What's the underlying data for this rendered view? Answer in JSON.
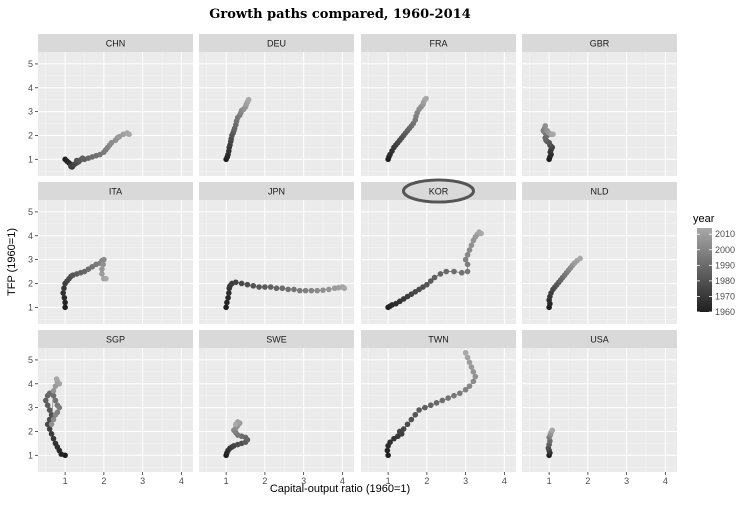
{
  "chart_data": {
    "type": "scatter",
    "title": "Growth paths compared, 1960-2014",
    "xlabel": "Capital-output ratio (1960=1)",
    "ylabel": "TFP (1960=1)",
    "xlim": [
      0.3,
      4.3
    ],
    "ylim": [
      0.3,
      5.5
    ],
    "x_ticks": [
      1,
      2,
      3,
      4
    ],
    "y_ticks": [
      1,
      2,
      3,
      4,
      5
    ],
    "grid": true,
    "color_scale": {
      "title": "year",
      "range": [
        1960,
        2014
      ],
      "ticks": [
        1960,
        1970,
        1980,
        1990,
        2000,
        2010
      ],
      "low_color": "#1f1f1f",
      "high_color": "#a8a8a8"
    },
    "panel_background": "#ebebeb",
    "strip_background": "#d9d9d9",
    "highlight_color": "#555555",
    "highlighted_panel": "KOR",
    "legend_position": "right",
    "panels": [
      {
        "name": "CHN",
        "points": [
          [
            1.0,
            1.0
          ],
          [
            1.05,
            0.92
          ],
          [
            1.1,
            0.85
          ],
          [
            1.15,
            0.78
          ],
          [
            1.2,
            0.72
          ],
          [
            1.18,
            0.68
          ],
          [
            1.15,
            0.7
          ],
          [
            1.2,
            0.75
          ],
          [
            1.25,
            0.8
          ],
          [
            1.3,
            0.85
          ],
          [
            1.35,
            0.9
          ],
          [
            1.3,
            0.95
          ],
          [
            1.4,
            0.98
          ],
          [
            1.5,
            1.0
          ],
          [
            1.45,
            1.05
          ],
          [
            1.6,
            1.05
          ],
          [
            1.7,
            1.1
          ],
          [
            1.8,
            1.15
          ],
          [
            1.9,
            1.2
          ],
          [
            2.0,
            1.3
          ],
          [
            2.05,
            1.4
          ],
          [
            2.1,
            1.5
          ],
          [
            2.15,
            1.6
          ],
          [
            2.2,
            1.7
          ],
          [
            2.3,
            1.8
          ],
          [
            2.35,
            1.9
          ],
          [
            2.4,
            1.95
          ],
          [
            2.5,
            2.05
          ],
          [
            2.6,
            2.1
          ],
          [
            2.65,
            2.05
          ]
        ]
      },
      {
        "name": "DEU",
        "points": [
          [
            1.0,
            1.0
          ],
          [
            1.03,
            1.1
          ],
          [
            1.05,
            1.2
          ],
          [
            1.07,
            1.35
          ],
          [
            1.08,
            1.5
          ],
          [
            1.1,
            1.6
          ],
          [
            1.12,
            1.75
          ],
          [
            1.13,
            1.85
          ],
          [
            1.15,
            2.0
          ],
          [
            1.18,
            2.1
          ],
          [
            1.2,
            2.2
          ],
          [
            1.22,
            2.3
          ],
          [
            1.25,
            2.45
          ],
          [
            1.27,
            2.6
          ],
          [
            1.3,
            2.75
          ],
          [
            1.35,
            2.85
          ],
          [
            1.38,
            2.95
          ],
          [
            1.4,
            3.05
          ],
          [
            1.45,
            3.1
          ],
          [
            1.5,
            3.2
          ],
          [
            1.52,
            3.3
          ],
          [
            1.55,
            3.4
          ],
          [
            1.58,
            3.5
          ]
        ]
      },
      {
        "name": "FRA",
        "points": [
          [
            1.0,
            1.0
          ],
          [
            1.02,
            1.1
          ],
          [
            1.05,
            1.2
          ],
          [
            1.1,
            1.35
          ],
          [
            1.15,
            1.5
          ],
          [
            1.2,
            1.6
          ],
          [
            1.25,
            1.7
          ],
          [
            1.3,
            1.8
          ],
          [
            1.35,
            1.9
          ],
          [
            1.4,
            2.0
          ],
          [
            1.45,
            2.1
          ],
          [
            1.5,
            2.2
          ],
          [
            1.55,
            2.3
          ],
          [
            1.6,
            2.4
          ],
          [
            1.65,
            2.5
          ],
          [
            1.7,
            2.65
          ],
          [
            1.72,
            2.8
          ],
          [
            1.75,
            2.95
          ],
          [
            1.8,
            3.1
          ],
          [
            1.85,
            3.2
          ],
          [
            1.9,
            3.3
          ],
          [
            1.92,
            3.4
          ],
          [
            1.95,
            3.5
          ],
          [
            1.98,
            3.55
          ]
        ]
      },
      {
        "name": "GBR",
        "points": [
          [
            1.0,
            1.0
          ],
          [
            1.02,
            1.1
          ],
          [
            1.05,
            1.2
          ],
          [
            1.03,
            1.3
          ],
          [
            1.05,
            1.4
          ],
          [
            1.08,
            1.5
          ],
          [
            1.05,
            1.55
          ],
          [
            1.02,
            1.6
          ],
          [
            1.0,
            1.7
          ],
          [
            0.95,
            1.75
          ],
          [
            0.92,
            1.8
          ],
          [
            0.9,
            1.9
          ],
          [
            0.95,
            2.0
          ],
          [
            0.9,
            2.1
          ],
          [
            0.88,
            2.15
          ],
          [
            0.85,
            2.2
          ],
          [
            0.88,
            2.3
          ],
          [
            0.9,
            2.4
          ],
          [
            0.95,
            2.2
          ],
          [
            1.0,
            2.1
          ],
          [
            1.05,
            2.05
          ],
          [
            1.1,
            2.05
          ]
        ]
      },
      {
        "name": "ITA",
        "points": [
          [
            1.0,
            1.0
          ],
          [
            1.0,
            1.2
          ],
          [
            0.98,
            1.4
          ],
          [
            0.95,
            1.6
          ],
          [
            0.97,
            1.8
          ],
          [
            1.0,
            2.0
          ],
          [
            1.05,
            2.1
          ],
          [
            1.1,
            2.2
          ],
          [
            1.15,
            2.3
          ],
          [
            1.2,
            2.35
          ],
          [
            1.3,
            2.4
          ],
          [
            1.4,
            2.45
          ],
          [
            1.5,
            2.5
          ],
          [
            1.6,
            2.6
          ],
          [
            1.7,
            2.7
          ],
          [
            1.8,
            2.8
          ],
          [
            1.9,
            2.85
          ],
          [
            1.95,
            2.95
          ],
          [
            2.0,
            3.0
          ],
          [
            1.98,
            2.8
          ],
          [
            1.95,
            2.6
          ],
          [
            1.95,
            2.4
          ],
          [
            2.0,
            2.2
          ],
          [
            2.05,
            2.2
          ]
        ]
      },
      {
        "name": "JPN",
        "points": [
          [
            1.0,
            1.0
          ],
          [
            1.02,
            1.2
          ],
          [
            1.05,
            1.4
          ],
          [
            1.07,
            1.6
          ],
          [
            1.08,
            1.8
          ],
          [
            1.1,
            1.9
          ],
          [
            1.15,
            2.0
          ],
          [
            1.25,
            2.05
          ],
          [
            1.4,
            2.0
          ],
          [
            1.55,
            1.95
          ],
          [
            1.7,
            1.9
          ],
          [
            1.85,
            1.85
          ],
          [
            2.0,
            1.85
          ],
          [
            2.15,
            1.85
          ],
          [
            2.3,
            1.8
          ],
          [
            2.45,
            1.8
          ],
          [
            2.6,
            1.75
          ],
          [
            2.75,
            1.75
          ],
          [
            2.9,
            1.7
          ],
          [
            3.05,
            1.7
          ],
          [
            3.2,
            1.7
          ],
          [
            3.35,
            1.7
          ],
          [
            3.5,
            1.72
          ],
          [
            3.65,
            1.75
          ],
          [
            3.8,
            1.8
          ],
          [
            3.9,
            1.82
          ],
          [
            4.0,
            1.85
          ],
          [
            4.05,
            1.8
          ]
        ]
      },
      {
        "name": "KOR",
        "points": [
          [
            1.0,
            1.0
          ],
          [
            1.05,
            1.05
          ],
          [
            1.1,
            1.1
          ],
          [
            1.2,
            1.15
          ],
          [
            1.3,
            1.25
          ],
          [
            1.4,
            1.35
          ],
          [
            1.5,
            1.45
          ],
          [
            1.6,
            1.55
          ],
          [
            1.7,
            1.65
          ],
          [
            1.8,
            1.75
          ],
          [
            1.9,
            1.85
          ],
          [
            2.0,
            1.95
          ],
          [
            2.1,
            2.1
          ],
          [
            2.2,
            2.25
          ],
          [
            2.35,
            2.4
          ],
          [
            2.5,
            2.5
          ],
          [
            2.7,
            2.5
          ],
          [
            2.9,
            2.45
          ],
          [
            3.05,
            2.5
          ],
          [
            3.05,
            2.8
          ],
          [
            3.0,
            3.0
          ],
          [
            3.05,
            3.2
          ],
          [
            3.1,
            3.4
          ],
          [
            3.15,
            3.6
          ],
          [
            3.2,
            3.8
          ],
          [
            3.25,
            3.95
          ],
          [
            3.3,
            4.05
          ],
          [
            3.35,
            4.15
          ],
          [
            3.4,
            4.1
          ]
        ]
      },
      {
        "name": "NLD",
        "points": [
          [
            1.0,
            1.0
          ],
          [
            1.02,
            1.15
          ],
          [
            1.0,
            1.3
          ],
          [
            1.02,
            1.45
          ],
          [
            1.05,
            1.6
          ],
          [
            1.1,
            1.75
          ],
          [
            1.15,
            1.85
          ],
          [
            1.2,
            1.95
          ],
          [
            1.25,
            2.05
          ],
          [
            1.3,
            2.15
          ],
          [
            1.35,
            2.25
          ],
          [
            1.4,
            2.35
          ],
          [
            1.45,
            2.45
          ],
          [
            1.5,
            2.55
          ],
          [
            1.55,
            2.65
          ],
          [
            1.6,
            2.75
          ],
          [
            1.65,
            2.85
          ],
          [
            1.72,
            2.95
          ],
          [
            1.8,
            3.05
          ]
        ]
      },
      {
        "name": "SGP",
        "points": [
          [
            1.0,
            1.0
          ],
          [
            0.9,
            1.05
          ],
          [
            0.85,
            1.2
          ],
          [
            0.8,
            1.35
          ],
          [
            0.75,
            1.5
          ],
          [
            0.7,
            1.7
          ],
          [
            0.65,
            1.9
          ],
          [
            0.6,
            2.1
          ],
          [
            0.55,
            2.3
          ],
          [
            0.6,
            2.5
          ],
          [
            0.65,
            2.7
          ],
          [
            0.6,
            2.9
          ],
          [
            0.55,
            3.1
          ],
          [
            0.5,
            3.3
          ],
          [
            0.55,
            3.5
          ],
          [
            0.6,
            3.6
          ],
          [
            0.7,
            3.5
          ],
          [
            0.75,
            3.3
          ],
          [
            0.8,
            3.1
          ],
          [
            0.85,
            3.0
          ],
          [
            0.8,
            2.8
          ],
          [
            0.75,
            2.7
          ],
          [
            0.7,
            2.5
          ],
          [
            0.65,
            2.3
          ],
          [
            0.7,
            3.7
          ],
          [
            0.75,
            3.9
          ],
          [
            0.8,
            4.1
          ],
          [
            0.85,
            4.0
          ],
          [
            0.78,
            4.2
          ]
        ]
      },
      {
        "name": "SWE",
        "points": [
          [
            1.0,
            1.0
          ],
          [
            1.02,
            1.1
          ],
          [
            1.05,
            1.2
          ],
          [
            1.1,
            1.3
          ],
          [
            1.15,
            1.35
          ],
          [
            1.2,
            1.4
          ],
          [
            1.3,
            1.45
          ],
          [
            1.4,
            1.5
          ],
          [
            1.5,
            1.55
          ],
          [
            1.55,
            1.65
          ],
          [
            1.5,
            1.75
          ],
          [
            1.4,
            1.8
          ],
          [
            1.3,
            1.85
          ],
          [
            1.25,
            1.95
          ],
          [
            1.2,
            2.05
          ],
          [
            1.25,
            2.15
          ],
          [
            1.3,
            2.25
          ],
          [
            1.35,
            2.35
          ],
          [
            1.3,
            2.4
          ],
          [
            1.25,
            2.3
          ]
        ]
      },
      {
        "name": "TWN",
        "points": [
          [
            1.0,
            1.0
          ],
          [
            0.98,
            1.2
          ],
          [
            1.0,
            1.4
          ],
          [
            1.05,
            1.55
          ],
          [
            1.15,
            1.7
          ],
          [
            1.25,
            1.8
          ],
          [
            1.35,
            1.9
          ],
          [
            1.3,
            2.0
          ],
          [
            1.4,
            2.1
          ],
          [
            1.5,
            2.3
          ],
          [
            1.6,
            2.5
          ],
          [
            1.7,
            2.7
          ],
          [
            1.8,
            2.9
          ],
          [
            1.95,
            3.0
          ],
          [
            2.1,
            3.1
          ],
          [
            2.25,
            3.2
          ],
          [
            2.4,
            3.3
          ],
          [
            2.55,
            3.4
          ],
          [
            2.7,
            3.5
          ],
          [
            2.85,
            3.6
          ],
          [
            3.0,
            3.75
          ],
          [
            3.1,
            3.9
          ],
          [
            3.2,
            4.1
          ],
          [
            3.25,
            4.3
          ],
          [
            3.2,
            4.5
          ],
          [
            3.15,
            4.7
          ],
          [
            3.1,
            4.9
          ],
          [
            3.05,
            5.1
          ],
          [
            3.0,
            5.3
          ]
        ]
      },
      {
        "name": "USA",
        "points": [
          [
            1.0,
            1.0
          ],
          [
            1.02,
            1.1
          ],
          [
            1.0,
            1.2
          ],
          [
            0.98,
            1.3
          ],
          [
            1.0,
            1.45
          ],
          [
            1.02,
            1.6
          ],
          [
            1.0,
            1.75
          ],
          [
            1.03,
            1.85
          ],
          [
            1.05,
            1.95
          ],
          [
            1.08,
            2.05
          ]
        ]
      }
    ]
  }
}
